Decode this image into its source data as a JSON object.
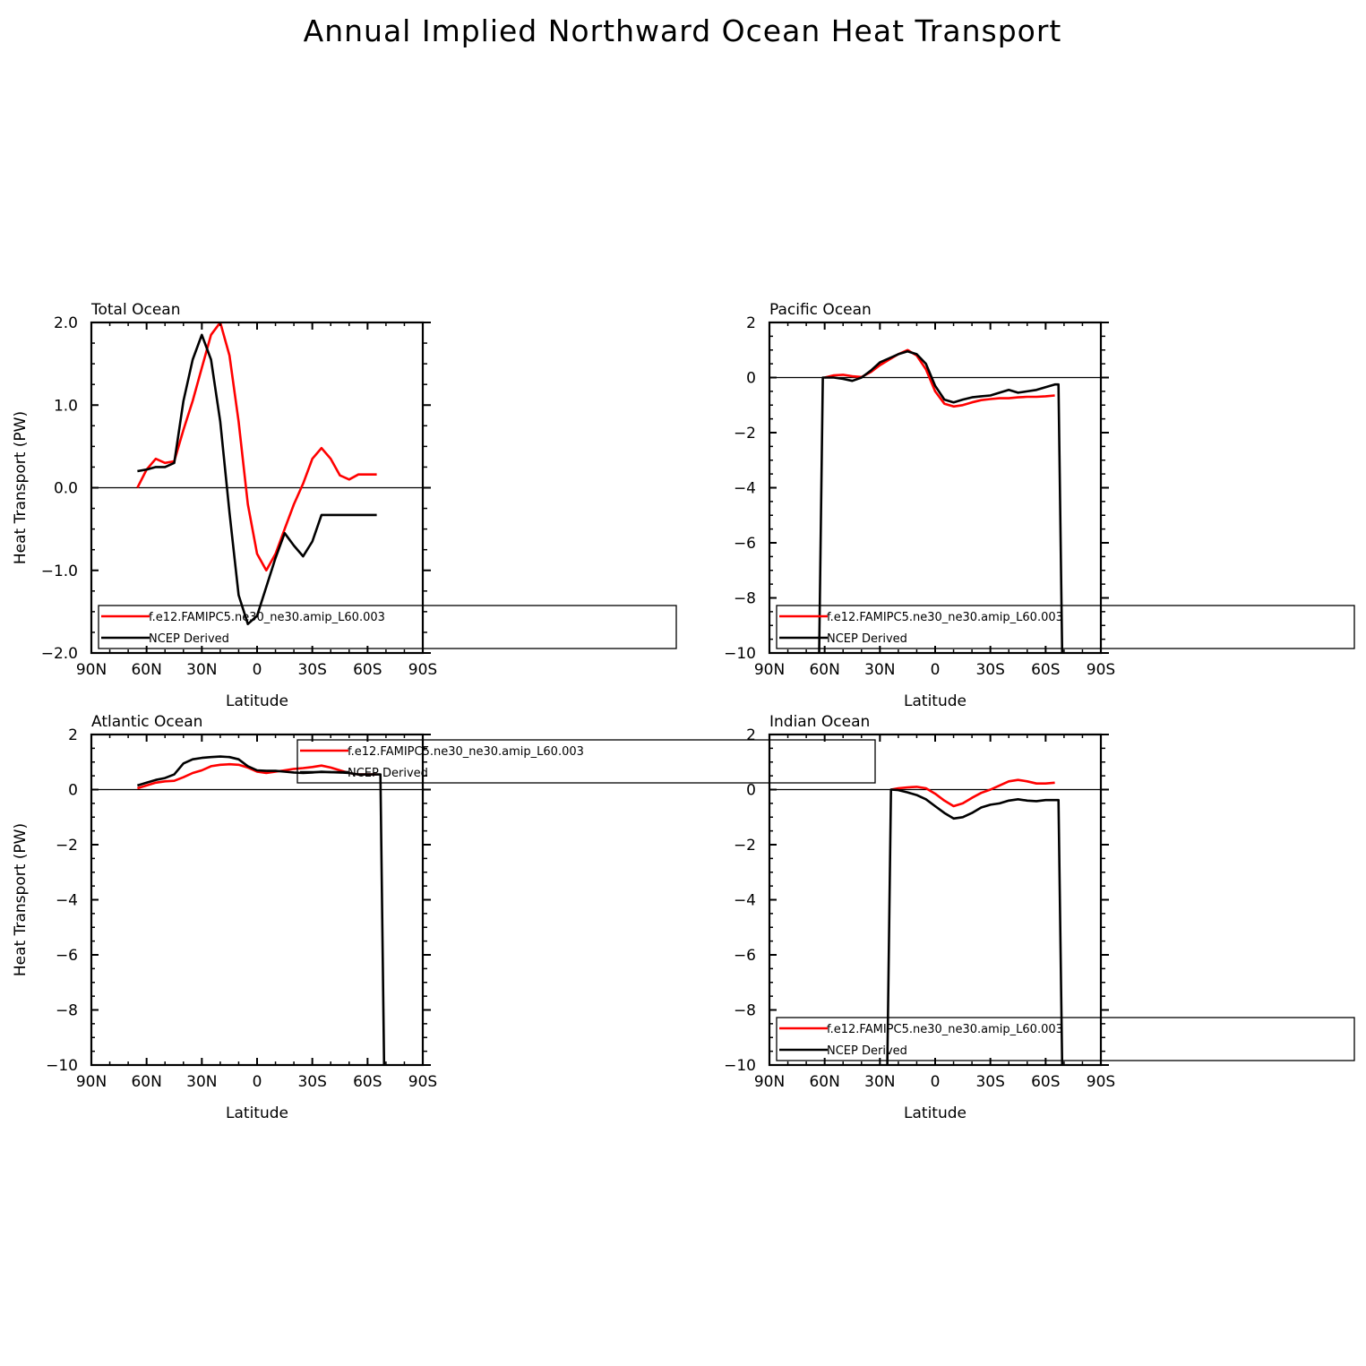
{
  "figure_title": "Annual Implied Northward Ocean Heat Transport",
  "colors": {
    "model": "#ff0000",
    "obs": "#000000",
    "zero_line": "#000000"
  },
  "chart_data": [
    {
      "type": "line",
      "title": "Total Ocean",
      "xlabel": "Latitude",
      "ylabel": "Heat Transport (PW)",
      "xlim": [
        90,
        -90
      ],
      "ylim": [
        -2.0,
        2.0
      ],
      "xticks": [
        90,
        60,
        30,
        0,
        -30,
        -60,
        -90
      ],
      "xtick_labels": [
        "90N",
        "60N",
        "30N",
        "0",
        "30S",
        "60S",
        "90S"
      ],
      "yticks": [
        -2.0,
        -1.0,
        0.0,
        1.0,
        2.0
      ],
      "ytick_labels": [
        "−2.0",
        "−1.0",
        "0.0",
        "1.0",
        "2.0"
      ],
      "legend": "bottom-left",
      "series": [
        {
          "name": "f.e12.FAMIPC5.ne30_ne30.amip_L60.003",
          "color": "#ff0000",
          "x": [
            65,
            60,
            55,
            50,
            45,
            40,
            35,
            30,
            25,
            20,
            15,
            10,
            5,
            0,
            -5,
            -10,
            -15,
            -20,
            -25,
            -30,
            -35,
            -40,
            -45,
            -50,
            -55,
            -60,
            -65
          ],
          "y": [
            0.0,
            0.22,
            0.35,
            0.3,
            0.32,
            0.7,
            1.05,
            1.45,
            1.85,
            2.0,
            1.6,
            0.8,
            -0.2,
            -0.8,
            -1.0,
            -0.8,
            -0.5,
            -0.2,
            0.05,
            0.35,
            0.48,
            0.35,
            0.15,
            0.1,
            0.16,
            0.16,
            0.16
          ]
        },
        {
          "name": "NCEP Derived",
          "color": "#000000",
          "x": [
            65,
            60,
            55,
            50,
            45,
            40,
            35,
            30,
            25,
            20,
            15,
            10,
            5,
            0,
            -5,
            -10,
            -15,
            -20,
            -25,
            -30,
            -35,
            -40,
            -45,
            -50,
            -55,
            -60,
            -65
          ],
          "y": [
            0.2,
            0.22,
            0.25,
            0.25,
            0.3,
            1.05,
            1.55,
            1.85,
            1.55,
            0.8,
            -0.3,
            -1.3,
            -1.65,
            -1.55,
            -1.2,
            -0.85,
            -0.55,
            -0.7,
            -0.83,
            -0.65,
            -0.33,
            -0.33,
            -0.33,
            -0.33,
            -0.33,
            -0.33,
            -0.33
          ]
        }
      ]
    },
    {
      "type": "line",
      "title": "Pacific Ocean",
      "xlabel": "Latitude",
      "ylabel": "",
      "xlim": [
        90,
        -90
      ],
      "ylim": [
        -10,
        2
      ],
      "xticks": [
        90,
        60,
        30,
        0,
        -30,
        -60,
        -90
      ],
      "xtick_labels": [
        "90N",
        "60N",
        "30N",
        "0",
        "30S",
        "60S",
        "90S"
      ],
      "yticks": [
        -10,
        -8,
        -6,
        -4,
        -2,
        0,
        2
      ],
      "ytick_labels": [
        "−10",
        "−8",
        "−6",
        "−4",
        "−2",
        "0",
        "2"
      ],
      "legend": "bottom-left",
      "series": [
        {
          "name": "f.e12.FAMIPC5.ne30_ne30.amip_L60.003",
          "color": "#ff0000",
          "x": [
            60,
            55,
            50,
            45,
            40,
            35,
            30,
            25,
            20,
            15,
            10,
            5,
            0,
            -5,
            -10,
            -15,
            -20,
            -25,
            -30,
            -35,
            -40,
            -45,
            -50,
            -55,
            -60,
            -65
          ],
          "y": [
            0.0,
            0.08,
            0.1,
            0.05,
            0.02,
            0.2,
            0.45,
            0.65,
            0.85,
            1.0,
            0.8,
            0.3,
            -0.5,
            -0.95,
            -1.05,
            -1.0,
            -0.9,
            -0.82,
            -0.78,
            -0.75,
            -0.75,
            -0.72,
            -0.7,
            -0.7,
            -0.68,
            -0.65
          ]
        },
        {
          "name": "NCEP Derived",
          "color": "#000000",
          "x": [
            63,
            61,
            55,
            50,
            45,
            40,
            35,
            30,
            25,
            20,
            15,
            10,
            5,
            0,
            -5,
            -10,
            -15,
            -20,
            -25,
            -30,
            -35,
            -40,
            -45,
            -50,
            -55,
            -60,
            -65,
            -67,
            -69
          ],
          "y": [
            -10,
            0.0,
            0.0,
            -0.05,
            -0.12,
            0.0,
            0.25,
            0.55,
            0.7,
            0.85,
            0.95,
            0.85,
            0.5,
            -0.3,
            -0.8,
            -0.9,
            -0.8,
            -0.72,
            -0.68,
            -0.65,
            -0.55,
            -0.45,
            -0.55,
            -0.5,
            -0.45,
            -0.35,
            -0.25,
            -0.25,
            -10
          ]
        }
      ]
    },
    {
      "type": "line",
      "title": "Atlantic Ocean",
      "xlabel": "Latitude",
      "ylabel": "Heat Transport (PW)",
      "xlim": [
        90,
        -90
      ],
      "ylim": [
        -10,
        2
      ],
      "xticks": [
        90,
        60,
        30,
        0,
        -30,
        -60,
        -90
      ],
      "xtick_labels": [
        "90N",
        "60N",
        "30N",
        "0",
        "30S",
        "60S",
        "90S"
      ],
      "yticks": [
        -10,
        -8,
        -6,
        -4,
        -2,
        0,
        2
      ],
      "ytick_labels": [
        "−10",
        "−8",
        "−6",
        "−4",
        "−2",
        "0",
        "2"
      ],
      "legend": "top-right",
      "series": [
        {
          "name": "f.e12.FAMIPC5.ne30_ne30.amip_L60.003",
          "color": "#ff0000",
          "x": [
            65,
            60,
            55,
            50,
            45,
            40,
            35,
            30,
            25,
            20,
            15,
            10,
            5,
            0,
            -5,
            -10,
            -15,
            -20,
            -25,
            -30,
            -35,
            -40,
            -45,
            -50,
            -55,
            -60,
            -65
          ],
          "y": [
            0.05,
            0.15,
            0.25,
            0.3,
            0.32,
            0.45,
            0.6,
            0.7,
            0.85,
            0.9,
            0.92,
            0.9,
            0.8,
            0.65,
            0.6,
            0.65,
            0.7,
            0.75,
            0.78,
            0.82,
            0.87,
            0.8,
            0.7,
            0.6,
            0.55,
            0.55,
            0.55
          ]
        },
        {
          "name": "NCEP Derived",
          "color": "#000000",
          "x": [
            65,
            60,
            55,
            50,
            45,
            40,
            35,
            30,
            25,
            20,
            15,
            10,
            5,
            0,
            -5,
            -10,
            -15,
            -20,
            -25,
            -30,
            -35,
            -40,
            -45,
            -50,
            -55,
            -60,
            -65,
            -67,
            -69
          ],
          "y": [
            0.15,
            0.25,
            0.35,
            0.42,
            0.55,
            0.95,
            1.1,
            1.15,
            1.18,
            1.2,
            1.18,
            1.1,
            0.85,
            0.7,
            0.68,
            0.68,
            0.65,
            0.62,
            0.6,
            0.62,
            0.65,
            0.63,
            0.62,
            0.6,
            0.55,
            0.55,
            0.55,
            0.55,
            -10
          ]
        }
      ]
    },
    {
      "type": "line",
      "title": "Indian Ocean",
      "xlabel": "Latitude",
      "ylabel": "",
      "xlim": [
        90,
        -90
      ],
      "ylim": [
        -10,
        2
      ],
      "xticks": [
        90,
        60,
        30,
        0,
        -30,
        -60,
        -90
      ],
      "xtick_labels": [
        "90N",
        "60N",
        "30N",
        "0",
        "30S",
        "60S",
        "90S"
      ],
      "yticks": [
        -10,
        -8,
        -6,
        -4,
        -2,
        0,
        2
      ],
      "ytick_labels": [
        "−10",
        "−8",
        "−6",
        "−4",
        "−2",
        "0",
        "2"
      ],
      "legend": "bottom-left",
      "series": [
        {
          "name": "f.e12.FAMIPC5.ne30_ne30.amip_L60.003",
          "color": "#ff0000",
          "x": [
            24,
            20,
            15,
            10,
            5,
            0,
            -5,
            -10,
            -15,
            -20,
            -25,
            -30,
            -35,
            -40,
            -45,
            -50,
            -55,
            -60,
            -65
          ],
          "y": [
            0.0,
            0.05,
            0.08,
            0.1,
            0.05,
            -0.15,
            -0.4,
            -0.6,
            -0.5,
            -0.3,
            -0.12,
            0.0,
            0.15,
            0.3,
            0.35,
            0.3,
            0.22,
            0.22,
            0.25
          ]
        },
        {
          "name": "NCEP Derived",
          "color": "#000000",
          "x": [
            26,
            24,
            20,
            15,
            10,
            5,
            0,
            -5,
            -10,
            -15,
            -20,
            -25,
            -30,
            -35,
            -40,
            -45,
            -50,
            -55,
            -60,
            -65,
            -67,
            -69
          ],
          "y": [
            -10,
            0.0,
            -0.02,
            -0.1,
            -0.2,
            -0.35,
            -0.6,
            -0.85,
            -1.05,
            -1.0,
            -0.85,
            -0.65,
            -0.55,
            -0.5,
            -0.4,
            -0.35,
            -0.4,
            -0.42,
            -0.38,
            -0.38,
            -0.38,
            -10
          ]
        }
      ]
    }
  ]
}
